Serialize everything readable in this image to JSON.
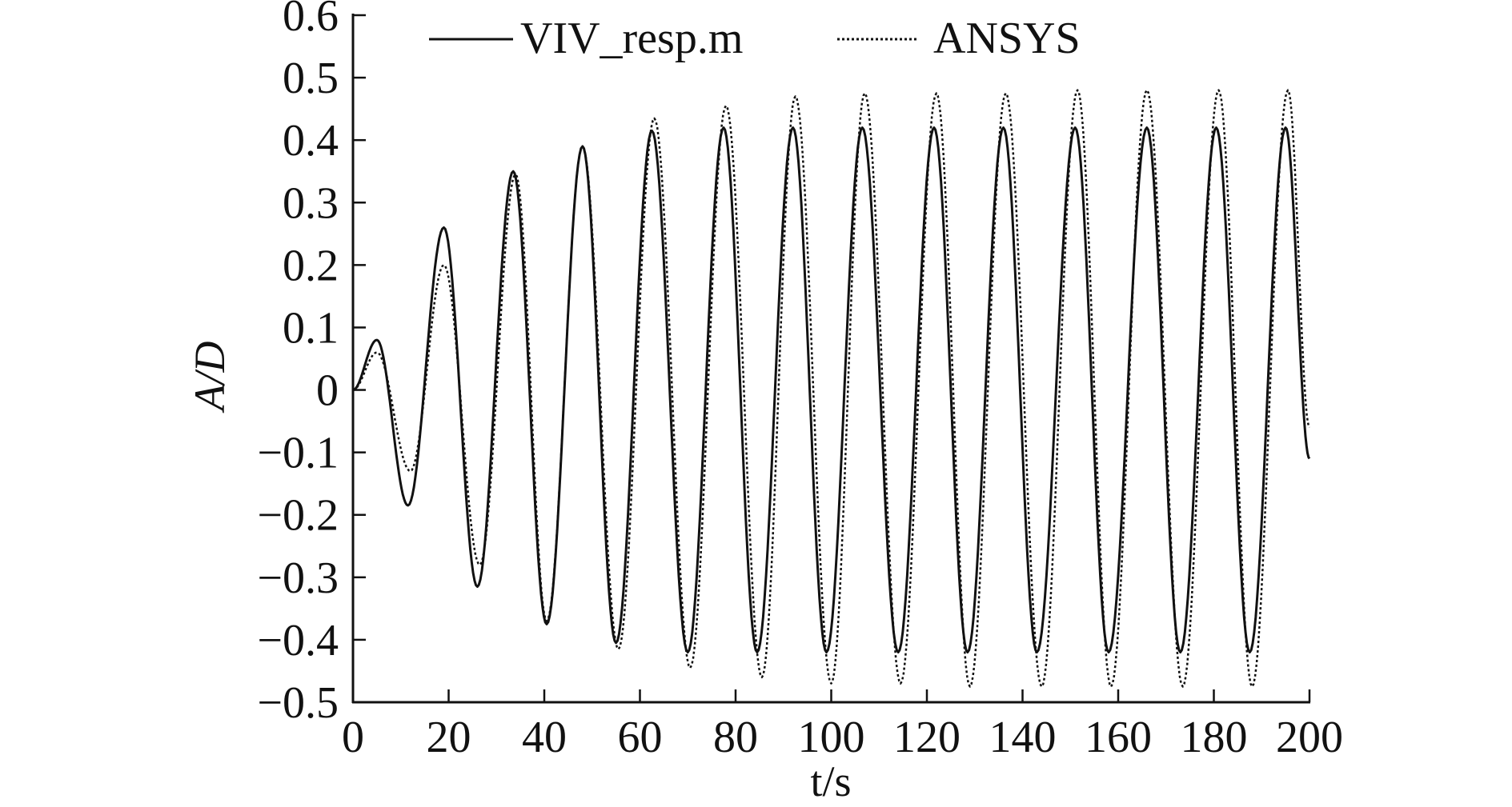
{
  "chart_data": {
    "type": "line",
    "title": "",
    "xlabel": "t/s",
    "ylabel": "A/D",
    "xlim": [
      0,
      200
    ],
    "ylim": [
      -0.5,
      0.6
    ],
    "xticks": [
      "0",
      "20",
      "40",
      "60",
      "80",
      "100",
      "120",
      "140",
      "160",
      "180",
      "200"
    ],
    "yticks": [
      "0.6",
      "0.5",
      "0.4",
      "0.3",
      "0.2",
      "0.1",
      "0",
      "−0.1",
      "−0.2",
      "−0.3",
      "−0.4",
      "−0.5"
    ],
    "grid": false,
    "legend": "top",
    "series": [
      {
        "name": "VIV_resp.m",
        "style": "solid",
        "color": "#111111",
        "extrema": [
          [
            0,
            0
          ],
          [
            5,
            0.08
          ],
          [
            11.5,
            -0.185
          ],
          [
            19,
            0.26
          ],
          [
            26,
            -0.315
          ],
          [
            33.5,
            0.35
          ],
          [
            40.5,
            -0.375
          ],
          [
            48,
            0.39
          ],
          [
            55,
            -0.405
          ],
          [
            62.5,
            0.415
          ],
          [
            70,
            -0.42
          ],
          [
            77.5,
            0.42
          ],
          [
            84.5,
            -0.42
          ],
          [
            92,
            0.42
          ],
          [
            99,
            -0.42
          ],
          [
            106.5,
            0.42
          ],
          [
            114,
            -0.42
          ],
          [
            121.5,
            0.42
          ],
          [
            128.5,
            -0.42
          ],
          [
            136,
            0.42
          ],
          [
            143,
            -0.42
          ],
          [
            151,
            0.42
          ],
          [
            158,
            -0.42
          ],
          [
            166,
            0.42
          ],
          [
            173,
            -0.42
          ],
          [
            180.5,
            0.42
          ],
          [
            187.5,
            -0.42
          ],
          [
            195,
            0.42
          ],
          [
            200,
            -0.11
          ]
        ]
      },
      {
        "name": "ANSYS",
        "style": "dotted",
        "color": "#111111",
        "extrema": [
          [
            0,
            0
          ],
          [
            5,
            0.06
          ],
          [
            12,
            -0.13
          ],
          [
            19,
            0.2
          ],
          [
            26.5,
            -0.28
          ],
          [
            34,
            0.345
          ],
          [
            40.5,
            -0.37
          ],
          [
            48,
            0.39
          ],
          [
            55.5,
            -0.415
          ],
          [
            63,
            0.435
          ],
          [
            70.5,
            -0.445
          ],
          [
            78,
            0.455
          ],
          [
            85.5,
            -0.46
          ],
          [
            92.5,
            0.47
          ],
          [
            100,
            -0.47
          ],
          [
            107,
            0.475
          ],
          [
            114.5,
            -0.47
          ],
          [
            122,
            0.475
          ],
          [
            129,
            -0.475
          ],
          [
            136.5,
            0.475
          ],
          [
            144,
            -0.475
          ],
          [
            151.5,
            0.48
          ],
          [
            158.5,
            -0.475
          ],
          [
            166,
            0.48
          ],
          [
            173.5,
            -0.475
          ],
          [
            181,
            0.48
          ],
          [
            188,
            -0.475
          ],
          [
            195.5,
            0.48
          ],
          [
            200,
            -0.06
          ]
        ]
      }
    ]
  }
}
